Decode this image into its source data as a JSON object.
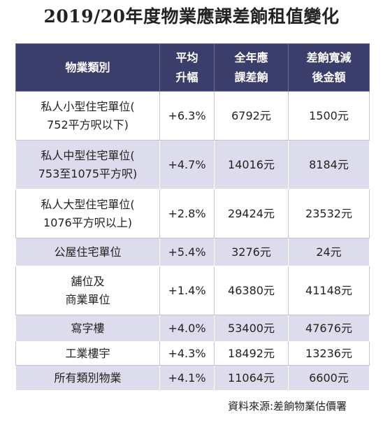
{
  "header": {
    "title": "2019/20年度物業應課差餉租值變化"
  },
  "table": {
    "columns": [
      "物業類別",
      "平均\n升幅",
      "全年應\n課差餉",
      "差餉寬減\n後金額"
    ],
    "rows": [
      [
        "私人小型住宅單位(\n752平方呎以下)",
        "+6.3%",
        "6792元",
        "1500元"
      ],
      [
        "私人中型住宅單位(\n753至1075平方呎)",
        "+4.7%",
        "14016元",
        "8184元"
      ],
      [
        "私人大型住宅單位(\n1076平方呎以上)",
        "+2.8%",
        "29424元",
        "23532元"
      ],
      [
        "公屋住宅單位",
        "+5.4%",
        "3276元",
        "24元"
      ],
      [
        "舖位及\n商業單位",
        "+1.4%",
        "46380元",
        "41148元"
      ],
      [
        "寫字樓",
        "+4.0%",
        "53400元",
        "47676元"
      ],
      [
        "工業樓宇",
        "+4.3%",
        "18492元",
        "13236元"
      ],
      [
        "所有類別物業",
        "+4.1%",
        "11064元",
        "6600元"
      ]
    ]
  },
  "footer": {
    "source": "資料來源:差餉物業估價署"
  }
}
